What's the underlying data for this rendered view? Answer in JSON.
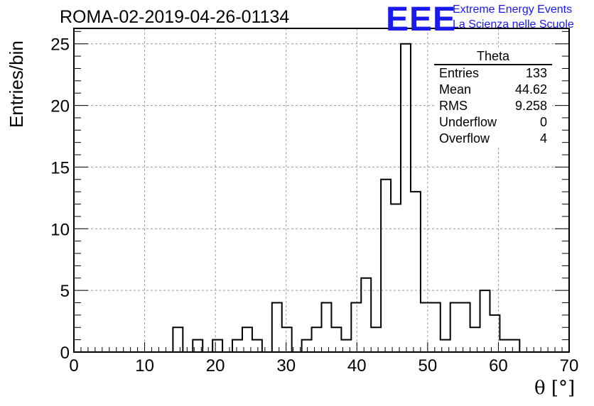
{
  "header": {
    "title": "ROMA-02-2019-04-26-01134",
    "logo": "EEE",
    "logo_line1": "Extreme Energy Events",
    "logo_line2": "La Scienza nelle Scuole",
    "brand_color": "#1a1aee"
  },
  "stats": {
    "title": "Theta",
    "rows": [
      {
        "label": "Entries",
        "value": "133"
      },
      {
        "label": "Mean",
        "value": "44.62"
      },
      {
        "label": "RMS",
        "value": "9.258"
      },
      {
        "label": "Underflow",
        "value": "0"
      },
      {
        "label": "Overflow",
        "value": "4"
      }
    ]
  },
  "chart_data": {
    "type": "histogram",
    "title": "ROMA-02-2019-04-26-01134",
    "xlabel": "θ [°]",
    "ylabel": "Entries/bin",
    "xlim": [
      0,
      70
    ],
    "ylim": [
      0,
      26.25
    ],
    "xticks": [
      0,
      10,
      20,
      30,
      40,
      50,
      60,
      70
    ],
    "yticks": [
      0,
      5,
      10,
      15,
      20,
      25
    ],
    "grid": true,
    "bin_width": 1.4,
    "bin_start": 0,
    "values": [
      0,
      0,
      0,
      0,
      0,
      0,
      0,
      0,
      0,
      0,
      2,
      0,
      1,
      0,
      1,
      0,
      1,
      2,
      1,
      0,
      4,
      2,
      0,
      1,
      2,
      4,
      2,
      1,
      4,
      6,
      2,
      14,
      12,
      25,
      13,
      4,
      4,
      1,
      4,
      4,
      2,
      5,
      3,
      1,
      1,
      0,
      0,
      0,
      0,
      0
    ]
  }
}
